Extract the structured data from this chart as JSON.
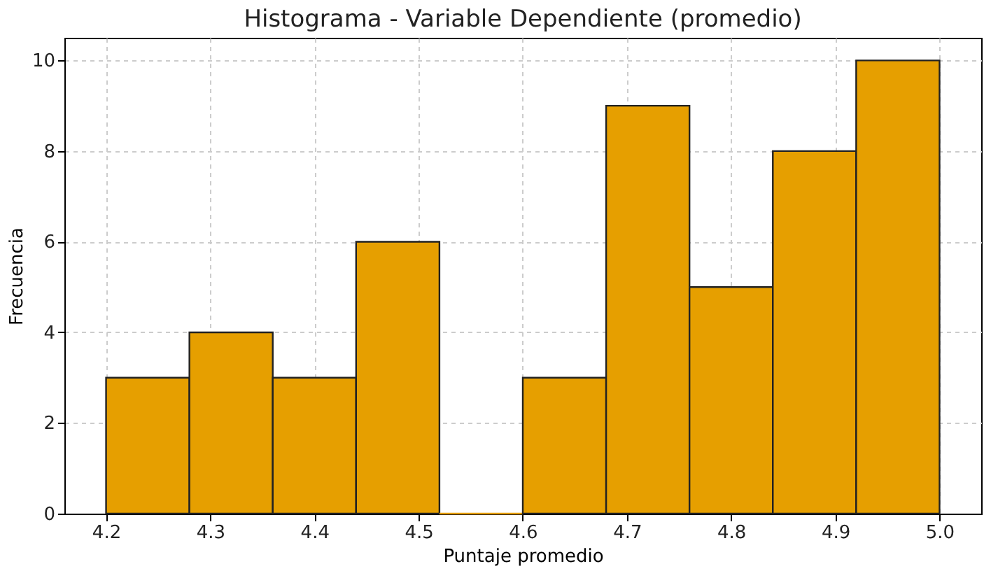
{
  "chart_data": {
    "type": "histogram",
    "title": "Histograma - Variable Dependiente (promedio)",
    "xlabel": "Puntaje promedio",
    "ylabel": "Frecuencia",
    "bins": [
      4.2,
      4.28,
      4.36,
      4.44,
      4.52,
      4.6,
      4.68,
      4.76,
      4.84,
      4.92,
      5.0
    ],
    "values": [
      3,
      4,
      3,
      6,
      0,
      3,
      9,
      5,
      8,
      10
    ],
    "color": "#e69f00",
    "xlim": [
      4.16,
      5.04
    ],
    "xticks": [
      4.2,
      4.3,
      4.4,
      4.5,
      4.6,
      4.7,
      4.8,
      4.9,
      {
        "value": 5.0,
        "label": "5.0"
      }
    ],
    "ylim": [
      0,
      10.5
    ],
    "yticks": [
      0,
      2,
      4,
      6,
      8,
      10
    ],
    "grid": true
  }
}
